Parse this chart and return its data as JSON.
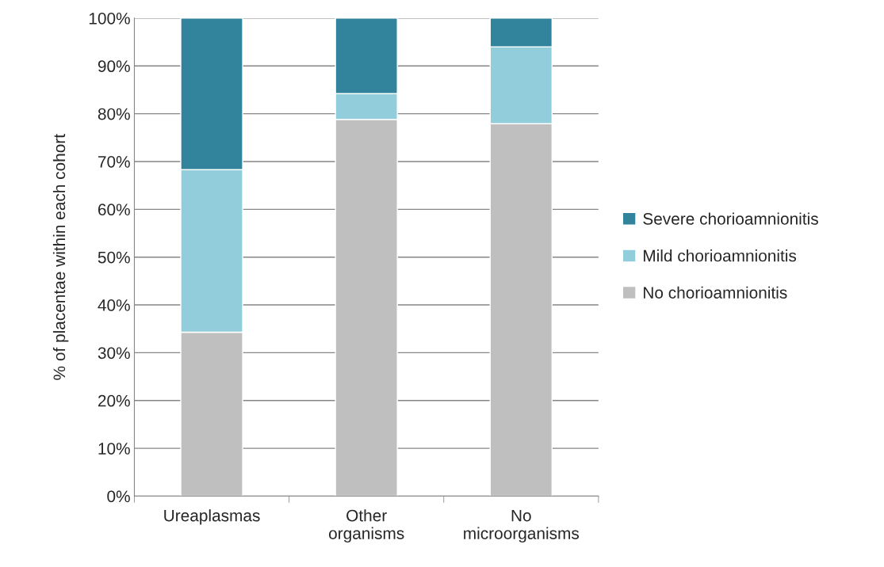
{
  "chart_data": {
    "type": "bar",
    "stacked": true,
    "ylabel": "% of placentae within each cohort",
    "categories": [
      "Ureaplasmas",
      "Other organisms",
      "No microorganisms"
    ],
    "series": [
      {
        "name": "No chorioamnionitis",
        "color": "#bfbfbf",
        "values": [
          34.3,
          78.8,
          77.9
        ]
      },
      {
        "name": "Mild chorioamnionitis",
        "color": "#92cddc",
        "values": [
          34.0,
          5.4,
          16.1
        ]
      },
      {
        "name": "Severe chorioamnionitis",
        "color": "#31849b",
        "values": [
          31.7,
          15.8,
          6.0
        ]
      }
    ],
    "ylim": [
      0,
      100
    ],
    "yticks": [
      {
        "value": 0,
        "label": "0%"
      },
      {
        "value": 10,
        "label": "10%"
      },
      {
        "value": 20,
        "label": "20%"
      },
      {
        "value": 30,
        "label": "30%"
      },
      {
        "value": 40,
        "label": "40%"
      },
      {
        "value": 50,
        "label": "50%"
      },
      {
        "value": 60,
        "label": "60%"
      },
      {
        "value": 70,
        "label": "70%"
      },
      {
        "value": 80,
        "label": "80%"
      },
      {
        "value": 90,
        "label": "90%"
      },
      {
        "value": 100,
        "label": "100%"
      }
    ],
    "grid": "y",
    "legend": "right"
  }
}
